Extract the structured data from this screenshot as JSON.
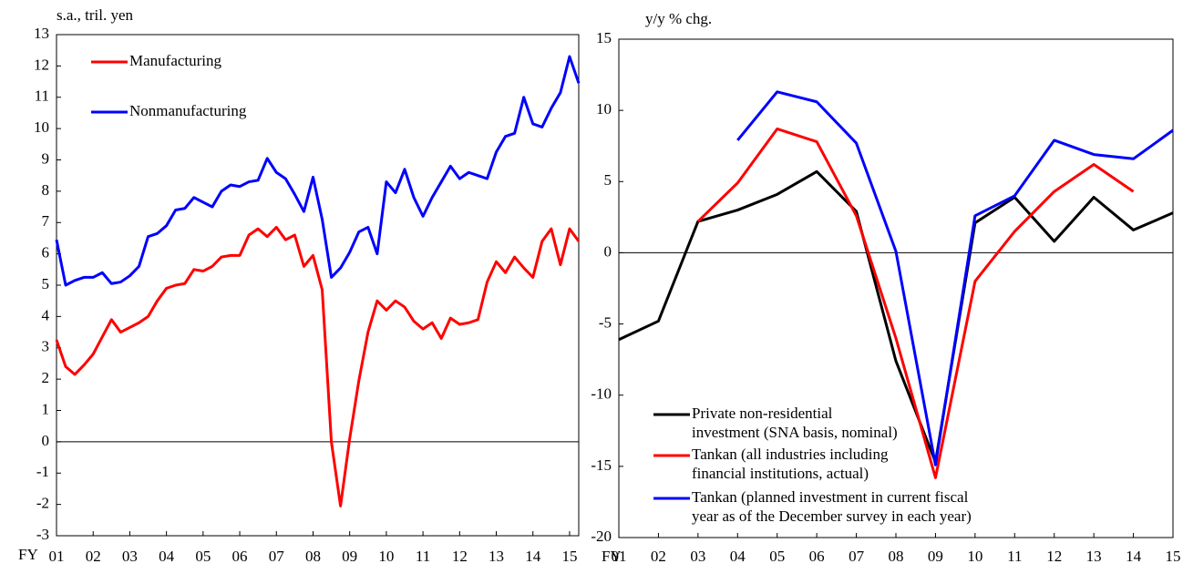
{
  "chart_data": [
    {
      "type": "line",
      "ylabel": "s.a., tril. yen",
      "xlabel": "FY",
      "x": [
        1,
        1.25,
        1.5,
        1.75,
        2,
        2.25,
        2.5,
        2.75,
        3,
        3.25,
        3.5,
        3.75,
        4,
        4.25,
        4.5,
        4.75,
        5,
        5.25,
        5.5,
        5.75,
        6,
        6.25,
        6.5,
        6.75,
        7,
        7.25,
        7.5,
        7.75,
        8,
        8.25,
        8.5,
        8.75,
        9,
        9.25,
        9.5,
        9.75,
        10,
        10.25,
        10.5,
        10.75,
        11,
        11.25,
        11.5,
        11.75,
        12,
        12.25,
        12.5,
        12.75,
        13,
        13.25,
        13.5,
        13.75,
        14,
        14.25,
        14.5,
        14.75,
        15,
        15.25
      ],
      "series": [
        {
          "name": "Manufacturing",
          "color": "#ff0000",
          "values": [
            3.25,
            2.4,
            2.15,
            2.45,
            2.8,
            3.35,
            3.9,
            3.5,
            3.65,
            3.8,
            4.0,
            4.5,
            4.9,
            5.0,
            5.05,
            5.5,
            5.45,
            5.6,
            5.9,
            5.95,
            5.95,
            6.6,
            6.8,
            6.55,
            6.85,
            6.45,
            6.6,
            5.6,
            5.95,
            4.85,
            0.0,
            -2.05,
            0.1,
            1.95,
            3.5,
            4.5,
            4.2,
            4.5,
            4.3,
            3.85,
            3.6,
            3.8,
            3.3,
            3.95,
            3.75,
            3.8,
            3.9,
            5.1,
            5.75,
            5.4,
            5.9,
            5.55,
            5.25,
            6.4,
            6.8,
            5.65,
            6.8,
            6.4
          ]
        },
        {
          "name": "Nonmanufacturing",
          "color": "#0000ff",
          "values": [
            6.45,
            5.0,
            5.15,
            5.25,
            5.25,
            5.4,
            5.05,
            5.1,
            5.3,
            5.6,
            6.55,
            6.65,
            6.9,
            7.4,
            7.45,
            7.8,
            7.65,
            7.5,
            8.0,
            8.2,
            8.15,
            8.3,
            8.35,
            9.05,
            8.6,
            8.4,
            7.9,
            7.35,
            8.45,
            7.1,
            5.25,
            5.55,
            6.05,
            6.7,
            6.85,
            6.0,
            8.3,
            7.95,
            8.7,
            7.8,
            7.2,
            7.8,
            8.3,
            8.8,
            8.4,
            8.6,
            8.5,
            8.4,
            9.25,
            9.75,
            9.85,
            11.0,
            10.15,
            10.05,
            10.65,
            11.15,
            12.3,
            11.45
          ]
        }
      ],
      "xlim": [
        1,
        15.25
      ],
      "xticks": [
        {
          "value": 1,
          "label": "01"
        },
        {
          "value": 2,
          "label": "02"
        },
        {
          "value": 3,
          "label": "03"
        },
        {
          "value": 4,
          "label": "04"
        },
        {
          "value": 5,
          "label": "05"
        },
        {
          "value": 6,
          "label": "06"
        },
        {
          "value": 7,
          "label": "07"
        },
        {
          "value": 8,
          "label": "08"
        },
        {
          "value": 9,
          "label": "09"
        },
        {
          "value": 10,
          "label": "10"
        },
        {
          "value": 11,
          "label": "11"
        },
        {
          "value": 12,
          "label": "12"
        },
        {
          "value": 13,
          "label": "13"
        },
        {
          "value": 14,
          "label": "14"
        },
        {
          "value": 15,
          "label": "15"
        }
      ],
      "ylim": [
        -3,
        13
      ],
      "yticks": [
        -3,
        -2,
        -1,
        0,
        1,
        2,
        3,
        4,
        5,
        6,
        7,
        8,
        9,
        10,
        11,
        12,
        13
      ]
    },
    {
      "type": "line",
      "ylabel": "y/y % chg.",
      "xlabel": "FY",
      "categories": [
        "01",
        "02",
        "03",
        "04",
        "05",
        "06",
        "07",
        "08",
        "09",
        "10",
        "11",
        "12",
        "13",
        "14",
        "15"
      ],
      "series": [
        {
          "name": [
            "Private non-residential",
            "investment (SNA basis, nominal)"
          ],
          "color": "#000000",
          "values": [
            -6.1,
            -4.8,
            2.2,
            3.0,
            4.1,
            5.7,
            2.9,
            -7.6,
            -14.7,
            2.1,
            3.9,
            0.8,
            3.9,
            1.6,
            2.8
          ]
        },
        {
          "name": [
            "Tankan (all industries including",
            "financial institutions, actual)"
          ],
          "color": "#ff0000",
          "values": [
            null,
            null,
            2.2,
            4.9,
            8.7,
            7.8,
            2.6,
            -6.0,
            -15.8,
            -2.0,
            1.5,
            4.3,
            6.2,
            4.3,
            null
          ]
        },
        {
          "name": [
            "Tankan (planned investment in current fiscal",
            "year as of the December survey in each year)"
          ],
          "color": "#0000ff",
          "values": [
            null,
            null,
            null,
            7.9,
            11.3,
            10.6,
            7.7,
            0.1,
            -14.9,
            2.6,
            4.0,
            7.9,
            6.9,
            6.6,
            8.6
          ]
        }
      ],
      "ylim": [
        -20,
        15
      ],
      "yticks": [
        -20,
        -15,
        -10,
        -5,
        0,
        5,
        10,
        15
      ]
    }
  ]
}
